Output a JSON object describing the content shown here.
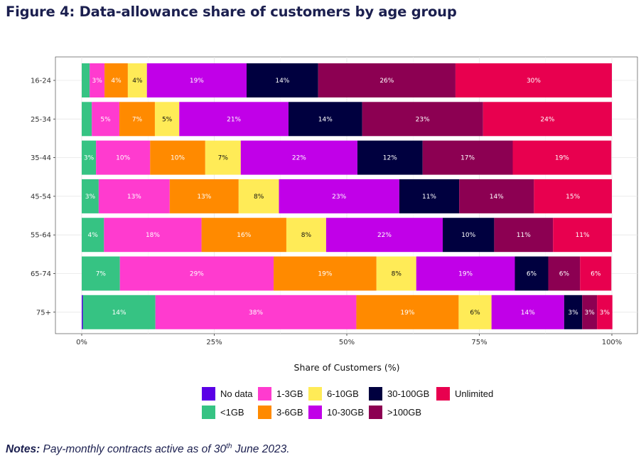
{
  "title": "Figure 4: Data-allowance share of customers by age group",
  "notes": {
    "label": "Notes:",
    "text_before": " Pay-monthly contracts active as of 30",
    "superscript": "th",
    "text_after": " June 2023."
  },
  "chart_data": {
    "type": "bar",
    "orientation": "horizontal",
    "stacked": true,
    "title": "",
    "xlabel": "Share of Customers (%)",
    "ylabel": "",
    "xlim": [
      0,
      100
    ],
    "x_ticks": [
      "0%",
      "25%",
      "50%",
      "75%",
      "100%"
    ],
    "grid": true,
    "legend_position": "bottom",
    "categories": [
      "16-24",
      "25-34",
      "35-44",
      "45-54",
      "55-64",
      "65-74",
      "75+"
    ],
    "series": [
      {
        "name": "No data",
        "color": "#5a00e6",
        "values": [
          0,
          0,
          0,
          0,
          0,
          0,
          0.2
        ]
      },
      {
        "name": "<1GB",
        "color": "#36c383",
        "values": [
          1.5,
          1.9,
          2.7,
          3.2,
          4.2,
          7.2,
          13.7
        ]
      },
      {
        "name": "1-3GB",
        "color": "#ff3bcf",
        "values": [
          2.8,
          5.2,
          10.2,
          13.4,
          18.4,
          29.0,
          37.9
        ]
      },
      {
        "name": "3-6GB",
        "color": "#ff8a00",
        "values": [
          4.4,
          6.7,
          10.4,
          13.0,
          16.0,
          19.4,
          19.3
        ]
      },
      {
        "name": "6-10GB",
        "color": "#ffeb57",
        "values": [
          3.6,
          4.6,
          6.7,
          7.6,
          7.5,
          7.5,
          6.2
        ]
      },
      {
        "name": "10-30GB",
        "color": "#c100e8",
        "values": [
          18.8,
          20.6,
          22.0,
          22.7,
          22.0,
          18.6,
          13.7
        ]
      },
      {
        "name": "30-100GB",
        "color": "#00003f",
        "values": [
          13.5,
          13.9,
          12.3,
          11.3,
          9.7,
          6.3,
          3.4
        ]
      },
      {
        "name": ">100GB",
        "color": "#8c0052",
        "values": [
          25.9,
          22.8,
          17.0,
          14.1,
          11.1,
          6.0,
          2.8
        ]
      },
      {
        "name": "Unlimited",
        "color": "#e8004f",
        "values": [
          29.5,
          24.3,
          18.6,
          14.7,
          11.1,
          5.9,
          2.9
        ]
      }
    ]
  }
}
